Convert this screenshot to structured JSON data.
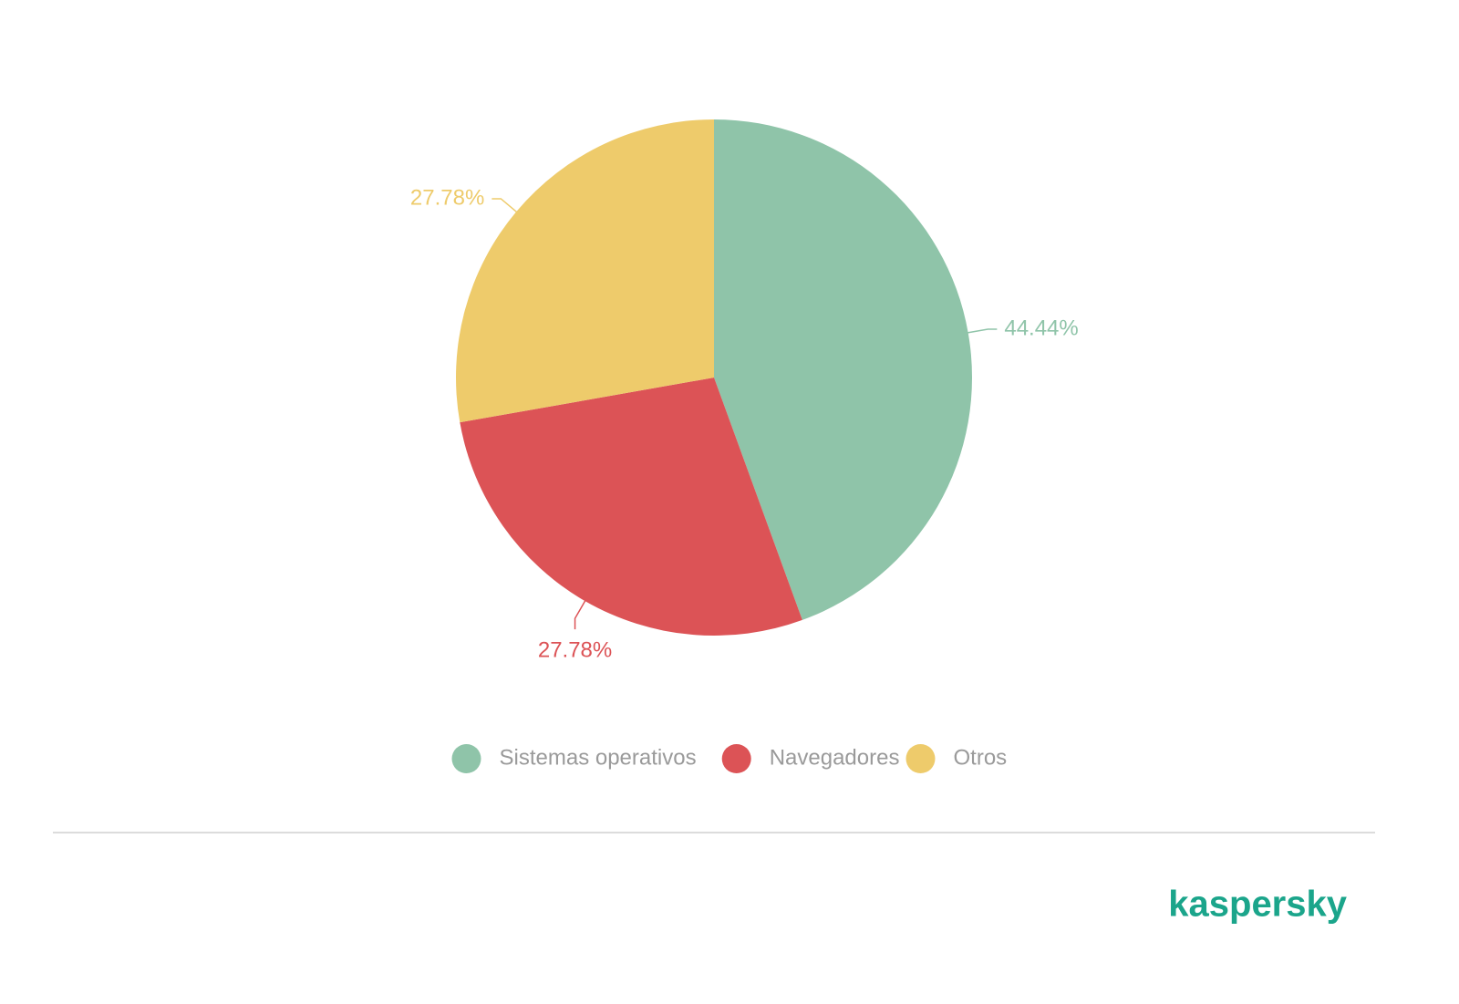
{
  "chart_data": {
    "type": "pie",
    "categories": [
      "Sistemas operativos",
      "Navegadores",
      "Otros"
    ],
    "values": [
      44.44,
      27.78,
      27.78
    ],
    "value_labels": [
      "44.44%",
      "27.78%",
      "27.78%"
    ],
    "colors": [
      "#8fc4a9",
      "#dc5356",
      "#eecb6b"
    ],
    "legend": "bottom"
  },
  "footer": {
    "brand": "kaspersky"
  }
}
